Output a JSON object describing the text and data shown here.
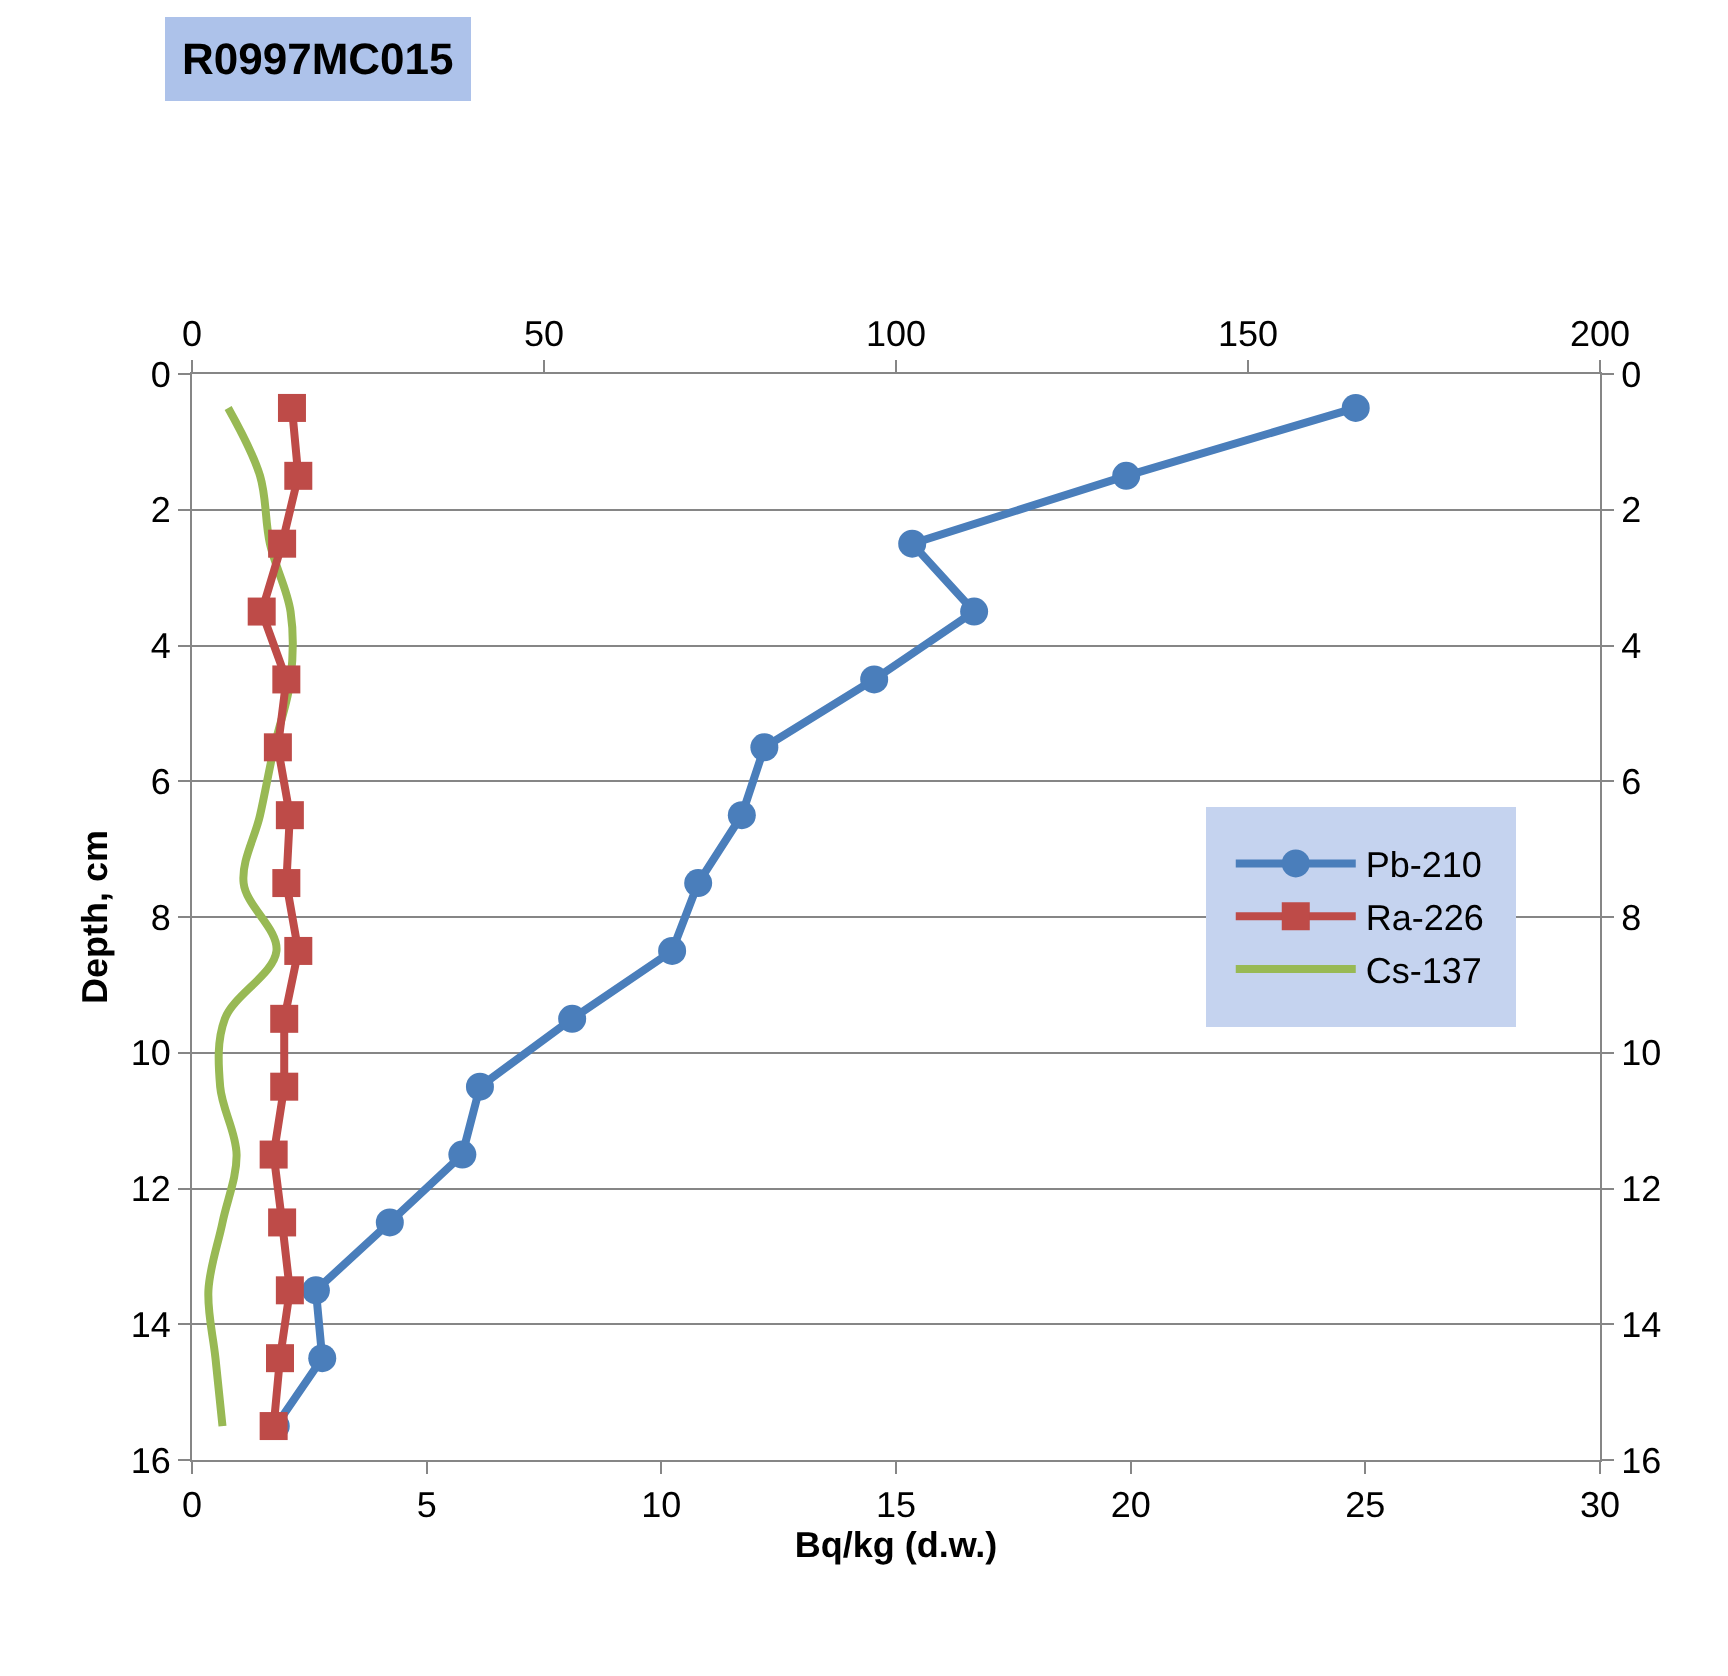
{
  "chart_data": {
    "type": "line",
    "title": "R0997MC015",
    "xlabel": "Bq/kg (d.w.)",
    "ylabel": "Depth, cm",
    "series": [
      {
        "name": "Pb-210",
        "color": "#4a7ebb",
        "marker": "circle",
        "axis": "x2",
        "x": [
          165.3,
          132.7,
          102.3,
          111.1,
          96.9,
          81.3,
          78.1,
          71.9,
          68.2,
          54.0,
          40.9,
          38.4,
          28.1,
          17.6,
          18.5,
          11.9
        ],
        "values": [
          0.5,
          1.5,
          2.5,
          3.5,
          4.5,
          5.5,
          6.5,
          7.5,
          8.5,
          9.5,
          10.5,
          11.5,
          12.5,
          13.5,
          14.5,
          15.5
        ]
      },
      {
        "name": "Ra-226",
        "color": "#be4b48",
        "marker": "square",
        "axis": "x2",
        "x": [
          14.2,
          15.1,
          12.8,
          9.9,
          13.4,
          12.2,
          13.9,
          13.4,
          15.1,
          13.1,
          13.1,
          11.6,
          12.8,
          13.9,
          12.5,
          11.6
        ],
        "values": [
          0.5,
          1.5,
          2.5,
          3.5,
          4.5,
          5.5,
          6.5,
          7.5,
          8.5,
          9.5,
          10.5,
          11.5,
          12.5,
          13.5,
          14.5,
          15.5
        ]
      },
      {
        "name": "Cs-137",
        "color": "#98b954",
        "marker": "none",
        "x": [
          0.77,
          1.45,
          1.66,
          2.1,
          2.1,
          1.75,
          1.45,
          1.1,
          1.8,
          0.7,
          0.6,
          0.95,
          0.65,
          0.35,
          0.5,
          0.65
        ],
        "values": [
          0.5,
          1.5,
          2.5,
          3.5,
          4.5,
          5.5,
          6.5,
          7.5,
          8.5,
          9.5,
          10.5,
          11.5,
          12.5,
          13.5,
          14.5,
          15.5
        ]
      }
    ],
    "xlim": [
      0,
      30
    ],
    "xticks": [
      0,
      5,
      10,
      15,
      20,
      25,
      30
    ],
    "x2lim": [
      0,
      200
    ],
    "x2ticks": [
      0,
      50,
      100,
      150,
      200
    ],
    "ylim": [
      16,
      0
    ],
    "yticks": [
      0,
      2,
      4,
      6,
      8,
      10,
      12,
      14,
      16
    ],
    "y2lim": [
      16,
      0
    ],
    "y2ticks": [
      0,
      2,
      4,
      6,
      8,
      10,
      12,
      14,
      16
    ],
    "grid": "y",
    "legend": "right"
  }
}
